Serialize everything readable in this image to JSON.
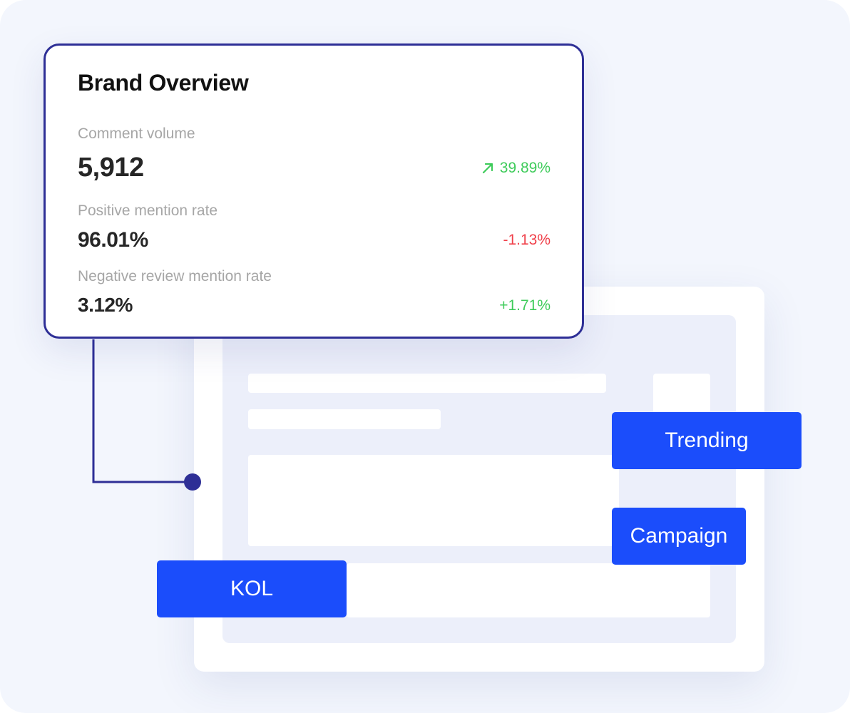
{
  "overview": {
    "title": "Brand Overview",
    "metrics": [
      {
        "label": "Comment volume",
        "value": "5,912",
        "change": "39.89%",
        "trend": "up",
        "icon": "arrow-up-right-icon"
      },
      {
        "label": "Positive mention rate",
        "value": "96.01%",
        "change": "-1.13%",
        "trend": "down"
      },
      {
        "label": "Negative review mention rate",
        "value": "3.12%",
        "change": "+1.71%",
        "trend": "up"
      }
    ]
  },
  "tags": {
    "trending": "Trending",
    "campaign": "Campaign",
    "kol": "KOL"
  },
  "colors": {
    "background": "#f3f6fd",
    "card_border": "#2e2f96",
    "accent_blue": "#1b4dfb",
    "positive": "#3ecb5a",
    "negative": "#f0404a"
  }
}
